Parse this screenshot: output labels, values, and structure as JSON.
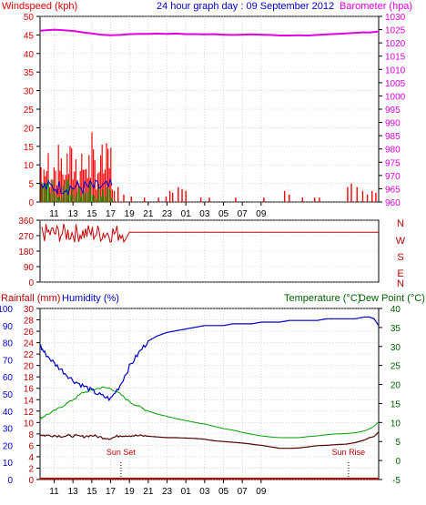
{
  "colors": {
    "windspeed": "#e00000",
    "gust": "#ff0000",
    "avg_wind": "#0000c8",
    "wind_green": "#00a000",
    "barometer": "#e000e0",
    "title": "#0000c8",
    "direction": "#c00000",
    "rainfall": "#c00000",
    "humidity": "#0000c8",
    "temperature": "#006000",
    "temp_line": "#00a000",
    "dewpoint": "#500000",
    "sun": "#c00000",
    "grid": "#c0c0c0"
  },
  "chart_data": [
    {
      "type": "line",
      "title": "24 hour graph day : 09 September 2012",
      "left_label": "Windspeed (kph)",
      "right_label": "Barometer (hpa)",
      "ylim_left": [
        0,
        50
      ],
      "ylim_right": [
        960,
        1030
      ],
      "x_ticks": [
        "11",
        "13",
        "15",
        "17",
        "19",
        "21",
        "23",
        "01",
        "03",
        "05",
        "07",
        "09"
      ],
      "y_ticks_left": [
        "0",
        "5",
        "10",
        "15",
        "20",
        "25",
        "30",
        "35",
        "40",
        "45",
        "50"
      ],
      "y_ticks_right": [
        "960",
        "965",
        "970",
        "975",
        "980",
        "985",
        "990",
        "995",
        "1000",
        "1005",
        "1010",
        "1015",
        "1020",
        "1025",
        "1030"
      ],
      "series": [
        {
          "name": "Barometer",
          "axis": "right",
          "x": [
            9.5,
            11,
            12,
            13,
            14,
            15,
            16,
            17,
            18,
            19,
            20,
            21,
            22,
            23,
            24,
            25,
            26,
            27,
            28,
            29,
            30,
            31,
            32,
            33,
            34,
            35,
            36,
            37,
            38,
            39,
            40,
            41,
            42,
            43,
            44,
            44.5,
            45,
            45.5
          ],
          "y": [
            1024.6,
            1025.0,
            1024.8,
            1024.5,
            1024.0,
            1023.6,
            1023.1,
            1022.9,
            1023.0,
            1023.3,
            1023.4,
            1023.4,
            1023.5,
            1023.4,
            1023.5,
            1023.3,
            1023.3,
            1023.2,
            1023.3,
            1023.1,
            1023.0,
            1023.1,
            1023.2,
            1023.1,
            1023.0,
            1022.8,
            1022.8,
            1022.9,
            1022.8,
            1023.0,
            1023.2,
            1023.4,
            1023.6,
            1023.8,
            1024.0,
            1023.9,
            1024.1,
            1024.3
          ]
        }
      ]
    },
    {
      "type": "scatter",
      "ylim": [
        0,
        360
      ],
      "y_ticks": [
        "0",
        "90",
        "180",
        "270",
        "360"
      ],
      "compass": [
        "N",
        "W",
        "S",
        "E",
        "N"
      ],
      "series": [
        {
          "name": "Wind direction",
          "x": [
            9.5,
            10,
            10.5,
            11,
            11.5,
            12,
            12.5,
            13,
            13.5,
            14,
            14.5,
            15,
            15.5,
            16,
            16.5,
            17,
            17.5,
            18,
            18.5,
            19,
            45.5
          ],
          "y": [
            295,
            310,
            285,
            300,
            275,
            260,
            250,
            270,
            240,
            280,
            265,
            300,
            290,
            310,
            305,
            295,
            300,
            320,
            310,
            290,
            290
          ]
        }
      ]
    },
    {
      "type": "line",
      "left_label_1": "Rainfall (mm)",
      "left_label_2": "Humidity (%)",
      "right_label_1": "Temperature (°C)",
      "right_label_2": "Dew Point (°C)",
      "ylim_humidity": [
        0,
        100
      ],
      "ylim_rain": [
        0,
        30
      ],
      "ylim_temp": [
        -5,
        40
      ],
      "y_ticks_humidity": [
        "0",
        "10",
        "20",
        "30",
        "40",
        "50",
        "60",
        "70",
        "80",
        "90",
        "100"
      ],
      "y_ticks_rain": [
        "0",
        "2",
        "4",
        "6",
        "8",
        "10",
        "12",
        "14",
        "16",
        "18",
        "20",
        "22",
        "24",
        "26",
        "28",
        "30"
      ],
      "y_ticks_temp": [
        "-5",
        "0",
        "5",
        "10",
        "15",
        "20",
        "25",
        "30",
        "35",
        "40"
      ],
      "x_ticks": [
        "11",
        "13",
        "15",
        "17",
        "19",
        "21",
        "23",
        "01",
        "03",
        "05",
        "07",
        "09"
      ],
      "annotations": [
        {
          "label": "Sun Set",
          "x": 18.1
        },
        {
          "label": "Sun Rise",
          "x": 42.3
        }
      ],
      "series": [
        {
          "name": "Humidity",
          "axis": "humidity",
          "x": [
            9.5,
            10,
            11,
            12,
            13,
            14,
            15,
            16,
            17,
            18,
            19,
            20,
            21,
            22,
            23,
            24,
            25,
            26,
            27,
            28,
            29,
            30,
            31,
            32,
            33,
            34,
            35,
            36,
            37,
            38,
            39,
            40,
            41,
            42,
            43,
            44,
            44.5,
            45,
            45.5
          ],
          "y": [
            78,
            74,
            68,
            63,
            58,
            55,
            52,
            49,
            47,
            55,
            66,
            74,
            81,
            84,
            86,
            87,
            88,
            89,
            90,
            90,
            90,
            91,
            91,
            91,
            92,
            92,
            92,
            93,
            93,
            93,
            93,
            94,
            94,
            94,
            94,
            95,
            95,
            94,
            90
          ]
        },
        {
          "name": "Temperature",
          "axis": "temp",
          "x": [
            9.5,
            10,
            11,
            12,
            13,
            14,
            15,
            16,
            17,
            18,
            19,
            20,
            21,
            22,
            23,
            24,
            25,
            26,
            27,
            28,
            29,
            30,
            31,
            32,
            33,
            34,
            35,
            36,
            37,
            38,
            39,
            40,
            41,
            42,
            43,
            44,
            44.5,
            45,
            45.5
          ],
          "y": [
            11.0,
            11.8,
            13.0,
            14.5,
            16.0,
            17.8,
            18.5,
            19.2,
            19.0,
            17.5,
            15.5,
            14.2,
            13.0,
            12.2,
            11.6,
            11.0,
            10.5,
            10.0,
            9.6,
            9.0,
            8.4,
            8.0,
            7.4,
            6.9,
            6.5,
            6.2,
            6.0,
            6.0,
            6.0,
            6.3,
            6.5,
            6.8,
            7.0,
            7.1,
            7.3,
            7.8,
            8.3,
            9.0,
            10.2
          ]
        },
        {
          "name": "Dew Point",
          "axis": "temp",
          "x": [
            9.5,
            10,
            11,
            12,
            13,
            14,
            15,
            16,
            17,
            18,
            19,
            20,
            21,
            22,
            23,
            24,
            25,
            26,
            27,
            28,
            29,
            30,
            31,
            32,
            33,
            34,
            35,
            36,
            37,
            38,
            39,
            40,
            41,
            42,
            43,
            44,
            44.5,
            45,
            45.5
          ],
          "y": [
            6.8,
            6.6,
            6.6,
            6.4,
            6.5,
            6.3,
            6.6,
            6.1,
            5.8,
            6.6,
            6.6,
            6.5,
            6.4,
            6.2,
            6.0,
            6.0,
            5.9,
            5.8,
            5.6,
            5.2,
            5.0,
            4.8,
            4.6,
            4.3,
            4.0,
            3.6,
            3.2,
            3.2,
            3.3,
            3.6,
            3.9,
            4.0,
            4.2,
            4.3,
            4.7,
            5.4,
            6.0,
            6.3,
            7.5
          ]
        },
        {
          "name": "Rainfall",
          "axis": "rain",
          "x": [
            9.5,
            45.5
          ],
          "y": [
            0,
            0
          ]
        }
      ]
    }
  ]
}
